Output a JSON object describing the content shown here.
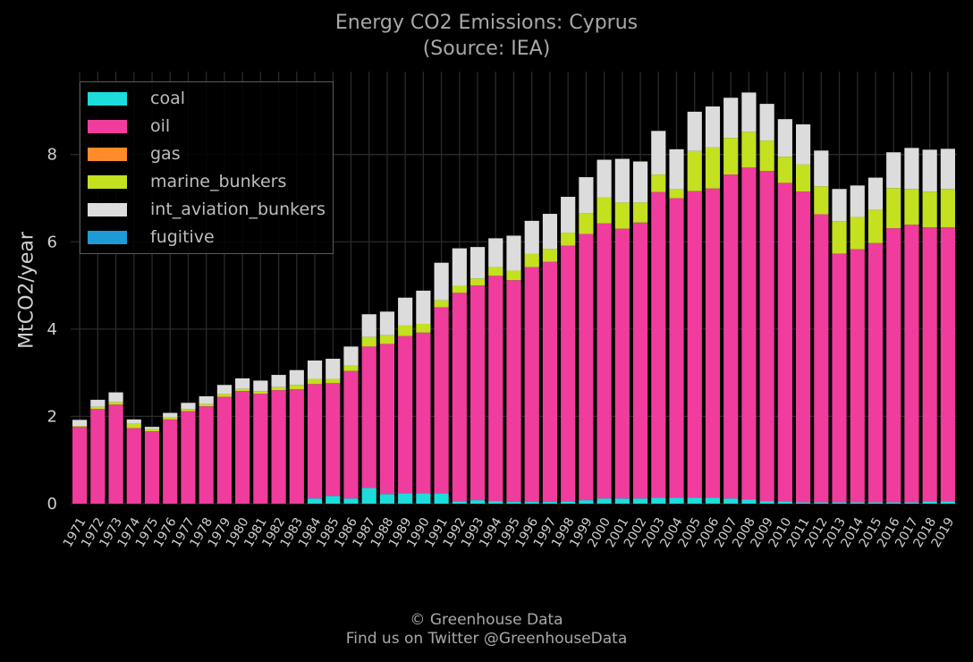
{
  "chart_data": {
    "type": "bar",
    "stacked": true,
    "title": "Energy CO2 Emissions: Cyprus",
    "subtitle": "(Source: IEA)",
    "xlabel": "",
    "ylabel": "MtCO2/year",
    "ylim": [
      0,
      9.9
    ],
    "yticks": [
      0,
      2,
      4,
      6,
      8
    ],
    "grid": true,
    "legend_position": "top-left",
    "categories": [
      "1971",
      "1972",
      "1973",
      "1974",
      "1975",
      "1976",
      "1977",
      "1978",
      "1979",
      "1980",
      "1981",
      "1982",
      "1983",
      "1984",
      "1985",
      "1986",
      "1987",
      "1988",
      "1989",
      "1990",
      "1991",
      "1992",
      "1993",
      "1994",
      "1995",
      "1996",
      "1997",
      "1998",
      "1999",
      "2000",
      "2001",
      "2002",
      "2003",
      "2004",
      "2005",
      "2006",
      "2007",
      "2008",
      "2009",
      "2010",
      "2011",
      "2012",
      "2013",
      "2014",
      "2015",
      "2016",
      "2017",
      "2018",
      "2019"
    ],
    "series": [
      {
        "name": "coal",
        "color": "#1ddcdc",
        "values": [
          0,
          0,
          0,
          0,
          0,
          0,
          0,
          0,
          0,
          0,
          0,
          0,
          0,
          0.12,
          0.18,
          0.12,
          0.36,
          0.22,
          0.24,
          0.24,
          0.24,
          0.05,
          0.08,
          0.06,
          0.04,
          0.04,
          0.04,
          0.05,
          0.08,
          0.12,
          0.12,
          0.12,
          0.14,
          0.14,
          0.14,
          0.14,
          0.12,
          0.1,
          0.06,
          0.05,
          0.03,
          0.03,
          0.03,
          0.03,
          0.03,
          0.03,
          0.03,
          0.05,
          0.05
        ]
      },
      {
        "name": "oil",
        "color": "#f03c9c",
        "values": [
          1.76,
          2.17,
          2.27,
          1.73,
          1.66,
          1.93,
          2.12,
          2.23,
          2.45,
          2.58,
          2.52,
          2.6,
          2.62,
          2.62,
          2.58,
          2.92,
          3.24,
          3.44,
          3.6,
          3.68,
          4.26,
          4.78,
          4.92,
          5.16,
          5.08,
          5.38,
          5.5,
          5.86,
          6.1,
          6.3,
          6.18,
          6.32,
          7.0,
          6.86,
          7.02,
          7.08,
          7.42,
          7.6,
          7.56,
          7.3,
          7.12,
          6.6,
          5.7,
          5.8,
          5.94,
          6.28,
          6.36,
          6.28,
          6.28
        ]
      },
      {
        "name": "gas",
        "color": "#ff8c28",
        "values": [
          0,
          0,
          0,
          0,
          0,
          0,
          0,
          0,
          0,
          0,
          0,
          0,
          0,
          0,
          0,
          0,
          0,
          0,
          0,
          0,
          0,
          0,
          0,
          0,
          0,
          0,
          0,
          0,
          0,
          0,
          0,
          0,
          0,
          0,
          0,
          0,
          0,
          0,
          0,
          0,
          0,
          0,
          0,
          0,
          0,
          0,
          0,
          0,
          0
        ]
      },
      {
        "name": "marine_bunkers",
        "color": "#c4e01e",
        "values": [
          0.02,
          0.05,
          0.06,
          0.1,
          0.05,
          0.05,
          0.05,
          0.05,
          0.07,
          0.05,
          0.06,
          0.07,
          0.1,
          0.12,
          0.1,
          0.12,
          0.22,
          0.2,
          0.24,
          0.2,
          0.16,
          0.16,
          0.16,
          0.2,
          0.22,
          0.3,
          0.3,
          0.3,
          0.48,
          0.6,
          0.6,
          0.46,
          0.4,
          0.2,
          0.92,
          0.94,
          0.84,
          0.82,
          0.7,
          0.6,
          0.62,
          0.64,
          0.74,
          0.74,
          0.76,
          0.92,
          0.82,
          0.82,
          0.88
        ]
      },
      {
        "name": "int_aviation_bunkers",
        "color": "#dcdcdc",
        "values": [
          0.14,
          0.16,
          0.22,
          0.1,
          0.05,
          0.1,
          0.14,
          0.18,
          0.2,
          0.24,
          0.24,
          0.28,
          0.34,
          0.42,
          0.46,
          0.44,
          0.52,
          0.54,
          0.64,
          0.76,
          0.86,
          0.86,
          0.72,
          0.66,
          0.8,
          0.76,
          0.8,
          0.82,
          0.82,
          0.86,
          1.0,
          0.94,
          1.0,
          0.92,
          0.9,
          0.94,
          0.92,
          0.9,
          0.84,
          0.86,
          0.92,
          0.82,
          0.74,
          0.72,
          0.74,
          0.82,
          0.94,
          0.96,
          0.92
        ]
      },
      {
        "name": "fugitive",
        "color": "#1e9bd7",
        "values": [
          0,
          0,
          0,
          0,
          0,
          0,
          0,
          0,
          0,
          0,
          0,
          0,
          0,
          0,
          0,
          0,
          0,
          0,
          0,
          0,
          0,
          0,
          0,
          0,
          0,
          0,
          0,
          0,
          0,
          0,
          0,
          0,
          0,
          0,
          0,
          0,
          0,
          0,
          0,
          0,
          0,
          0,
          0,
          0,
          0,
          0,
          0,
          0,
          0
        ]
      }
    ]
  },
  "footer": {
    "line1": "© Greenhouse Data",
    "line2": "Find us on Twitter @GreenhouseData"
  }
}
